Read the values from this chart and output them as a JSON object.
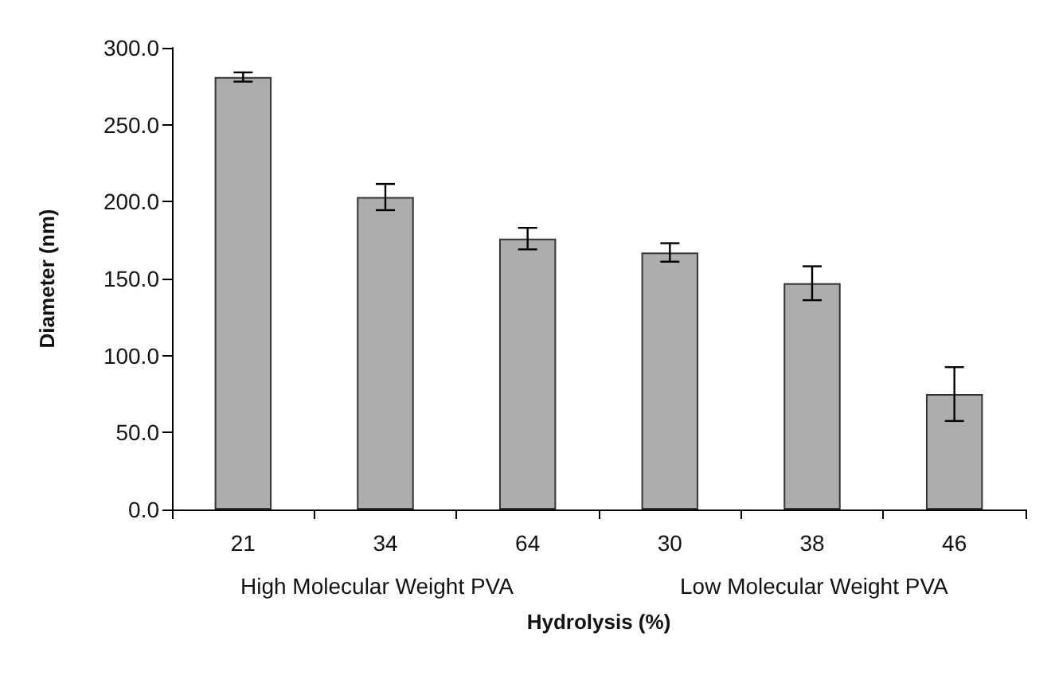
{
  "chart_data": {
    "type": "bar",
    "xlabel": "Hydrolysis (%)",
    "ylabel": "Diameter (nm)",
    "categories": [
      "21",
      "34",
      "64",
      "30",
      "38",
      "46"
    ],
    "values": [
      281,
      203,
      176,
      167,
      147,
      75
    ],
    "errors": [
      3,
      8.5,
      7,
      6,
      11,
      17.5
    ],
    "color": "#adadad",
    "ylim": [
      0,
      300
    ],
    "yticks": [
      {
        "value": 0,
        "label": "0.0"
      },
      {
        "value": 50,
        "label": "50.0"
      },
      {
        "value": 100,
        "label": "100.0"
      },
      {
        "value": 150,
        "label": "150.0"
      },
      {
        "value": 200,
        "label": "200.0"
      },
      {
        "value": 250,
        "label": "250.0"
      },
      {
        "value": 300,
        "label": "300.0"
      }
    ],
    "annotations": [
      "High Molecular Weight PVA",
      "Low Molecular Weight PVA"
    ],
    "grid": false
  }
}
